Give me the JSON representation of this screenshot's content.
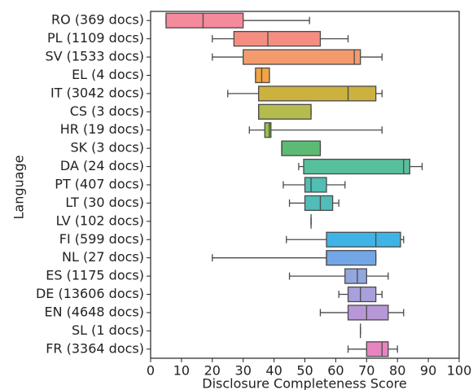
{
  "chart_data": {
    "type": "box",
    "x_label": "Disclosure Completeness Score",
    "y_label": "Language",
    "categories": [
      "RO (369 docs)",
      "PL (1109 docs)",
      "SV (1533 docs)",
      "EL (4 docs)",
      "IT (3042 docs)",
      "CS (3 docs)",
      "HR (19 docs)",
      "SK (3 docs)",
      "DA (24 docs)",
      "PT (407 docs)",
      "LT (30 docs)",
      "LV (102 docs)",
      "FI (599 docs)",
      "NL (27 docs)",
      "ES (1175 docs)",
      "DE (13606 docs)",
      "EN (4648 docs)",
      "SL (1 docs)",
      "FR (3364 docs)"
    ],
    "stats": [
      [
        5,
        5,
        17,
        30,
        51.5
      ],
      [
        20,
        27,
        38,
        55,
        64
      ],
      [
        20,
        30,
        66,
        68,
        75
      ],
      [
        34,
        34,
        36,
        38.5,
        38.5
      ],
      [
        25,
        35,
        64,
        73,
        75
      ],
      [
        35,
        35,
        35,
        52,
        52
      ],
      [
        32,
        37,
        38.5,
        39,
        75
      ],
      [
        42.5,
        42.5,
        42.5,
        55,
        55
      ],
      [
        48,
        49.6,
        82,
        84,
        88
      ],
      [
        43,
        50,
        52,
        57,
        63
      ],
      [
        45,
        50,
        55,
        59,
        61
      ],
      [
        52,
        52,
        52,
        52,
        52
      ],
      [
        44,
        57,
        73,
        81,
        82
      ],
      [
        20,
        57,
        57,
        73,
        73
      ],
      [
        45,
        63,
        67,
        70,
        77
      ],
      [
        61,
        64,
        68,
        73,
        75
      ],
      [
        55,
        64,
        70,
        77,
        82
      ],
      [
        68,
        68,
        68,
        68,
        68
      ],
      [
        64,
        70,
        75,
        77,
        80
      ]
    ],
    "colors": [
      "#f48a9c",
      "#f48e80",
      "#f49b6e",
      "#f2a443",
      "#ccb13f",
      "#b3bc4d",
      "#93c24c",
      "#5dba74",
      "#56c09d",
      "#52bdb2",
      "#50bdb8",
      "#54bfc7",
      "#3fb4e4",
      "#72a6e4",
      "#93a6dd",
      "#a7a0dd",
      "#b797d5",
      "#d392d1",
      "#e884c0"
    ],
    "xlim": [
      0,
      100
    ],
    "xticks": [
      0,
      10,
      20,
      30,
      40,
      50,
      60,
      70,
      80,
      90,
      100
    ]
  }
}
